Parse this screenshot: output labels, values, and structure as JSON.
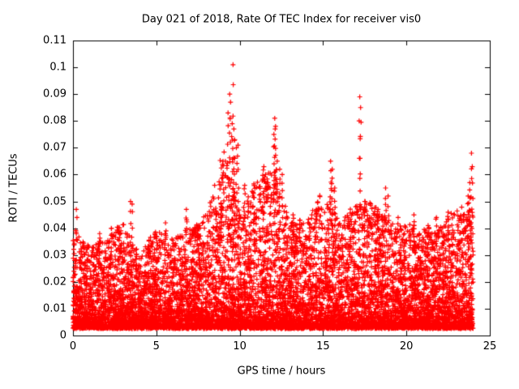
{
  "chart_data": {
    "type": "scatter",
    "title": "Day 021 of 2018, Rate Of TEC Index for receiver vis0",
    "xlabel": "GPS time / hours",
    "ylabel": "ROTI / TECUs",
    "xlim": [
      0,
      25
    ],
    "ylim": [
      0,
      0.11
    ],
    "xtick_values": [
      0,
      5,
      10,
      15,
      20,
      25
    ],
    "xtick_labels": [
      "0",
      "5",
      "10",
      "15",
      "20",
      "25"
    ],
    "ytick_values": [
      0,
      0.01,
      0.02,
      0.03,
      0.04,
      0.05,
      0.06,
      0.07,
      0.08,
      0.09,
      0.1,
      0.11
    ],
    "ytick_labels": [
      "0",
      "0.01",
      "0.02",
      "0.03",
      "0.04",
      "0.05",
      "0.06",
      "0.07",
      "0.08",
      "0.09",
      "0.1",
      "0.11"
    ],
    "grid": false,
    "legend": null,
    "marker": "plus",
    "marker_color": "#ff0000",
    "axis_color": "#000000",
    "background_color": "#ffffff",
    "data_x_range": [
      0,
      24
    ],
    "point_count": 10000,
    "seed": 2018021,
    "baseline_y_floor": 0.003,
    "density_gamma": 2.8,
    "hourly_upper_envelope": [
      0.04,
      0.033,
      0.036,
      0.042,
      0.03,
      0.04,
      0.036,
      0.04,
      0.045,
      0.07,
      0.046,
      0.058,
      0.062,
      0.044,
      0.042,
      0.055,
      0.042,
      0.05,
      0.05,
      0.042,
      0.042,
      0.04,
      0.04,
      0.048
    ],
    "outliers": [
      [
        0.2,
        0.047
      ],
      [
        1.6,
        0.038
      ],
      [
        2.3,
        0.04
      ],
      [
        3.45,
        0.05
      ],
      [
        3.55,
        0.049
      ],
      [
        4.5,
        0.033
      ],
      [
        5.55,
        0.042
      ],
      [
        6.8,
        0.047
      ],
      [
        7.5,
        0.041
      ],
      [
        8.6,
        0.046
      ],
      [
        8.9,
        0.048
      ],
      [
        9.0,
        0.065
      ],
      [
        9.3,
        0.083
      ],
      [
        9.4,
        0.09
      ],
      [
        9.45,
        0.087
      ],
      [
        9.6,
        0.101
      ],
      [
        9.55,
        0.079
      ],
      [
        9.65,
        0.077
      ],
      [
        9.7,
        0.073
      ],
      [
        9.8,
        0.07
      ],
      [
        9.9,
        0.071
      ],
      [
        10.3,
        0.056
      ],
      [
        10.8,
        0.048
      ],
      [
        11.45,
        0.063
      ],
      [
        11.55,
        0.06
      ],
      [
        11.7,
        0.057
      ],
      [
        12.05,
        0.075
      ],
      [
        12.1,
        0.081
      ],
      [
        12.15,
        0.078
      ],
      [
        12.25,
        0.065
      ],
      [
        12.4,
        0.062
      ],
      [
        12.55,
        0.06
      ],
      [
        13.2,
        0.045
      ],
      [
        13.6,
        0.043
      ],
      [
        14.6,
        0.047
      ],
      [
        15.45,
        0.065
      ],
      [
        15.55,
        0.062
      ],
      [
        15.7,
        0.055
      ],
      [
        16.5,
        0.044
      ],
      [
        17.2,
        0.089
      ],
      [
        17.25,
        0.085
      ],
      [
        17.5,
        0.05
      ],
      [
        18.3,
        0.047
      ],
      [
        18.75,
        0.055
      ],
      [
        18.9,
        0.052
      ],
      [
        19.5,
        0.044
      ],
      [
        20.45,
        0.045
      ],
      [
        21.3,
        0.041
      ],
      [
        21.8,
        0.044
      ],
      [
        22.5,
        0.046
      ],
      [
        23.7,
        0.052
      ],
      [
        23.8,
        0.057
      ],
      [
        23.9,
        0.068
      ],
      [
        23.95,
        0.063
      ]
    ]
  }
}
